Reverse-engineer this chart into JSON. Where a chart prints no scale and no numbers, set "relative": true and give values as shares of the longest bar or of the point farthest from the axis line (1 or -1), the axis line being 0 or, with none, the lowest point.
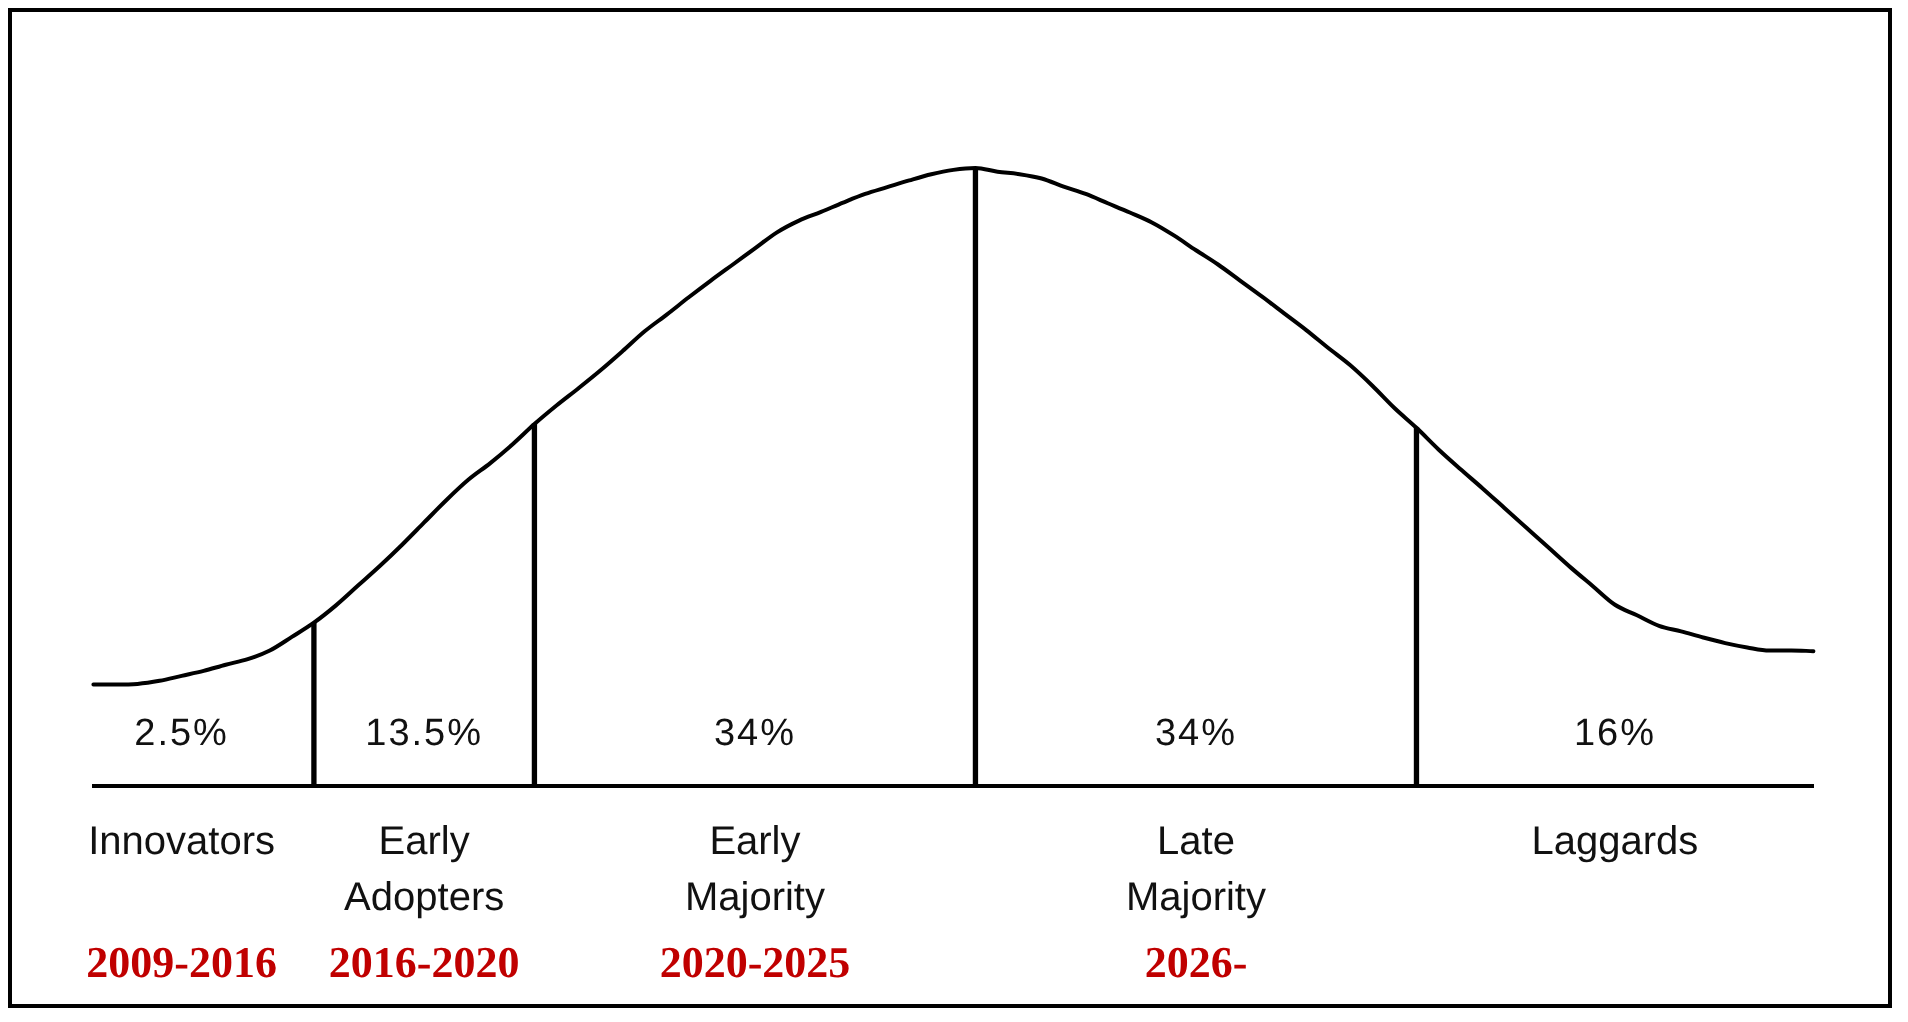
{
  "chart_data": {
    "type": "line",
    "relative": true,
    "categories": [
      null,
      null,
      null,
      null,
      "Innovators",
      null,
      null,
      null,
      null,
      null,
      null,
      null,
      null,
      null,
      null,
      "Early Adopters",
      null,
      null,
      null,
      null,
      null,
      null,
      null,
      null,
      null,
      null,
      null,
      null,
      null,
      null,
      "Early Majority",
      null,
      null,
      null,
      null,
      null,
      null,
      null,
      null,
      null,
      null,
      null,
      null,
      null,
      null,
      null,
      null,
      null,
      null,
      null,
      "Late Majority",
      null,
      null,
      null,
      null,
      null,
      null,
      null,
      null,
      null,
      null,
      null,
      null,
      null,
      null,
      null,
      null,
      null,
      null,
      "Laggards",
      null,
      null,
      null,
      null,
      null,
      null,
      null,
      null,
      null
    ],
    "series": [
      {
        "color": "#000000",
        "values": [
          0.165,
          0.165,
          0.166,
          0.171,
          0.179,
          0.187,
          0.197,
          0.206,
          0.22,
          0.242,
          0.265,
          0.293,
          0.325,
          0.357,
          0.391,
          0.427,
          0.463,
          0.496,
          0.523,
          0.553,
          0.586,
          0.616,
          0.644,
          0.673,
          0.704,
          0.736,
          0.763,
          0.791,
          0.818,
          0.844,
          0.87,
          0.896,
          0.915,
          0.929,
          0.944,
          0.958,
          0.969,
          0.98,
          0.99,
          0.997,
          1,
          0.994,
          0.99,
          0.983,
          0.97,
          0.958,
          0.943,
          0.928,
          0.912,
          0.891,
          0.867,
          0.844,
          0.818,
          0.792,
          0.765,
          0.738,
          0.709,
          0.681,
          0.648,
          0.612,
          0.58,
          0.545,
          0.513,
          0.482,
          0.45,
          0.418,
          0.386,
          0.354,
          0.324,
          0.294,
          0.277,
          0.26,
          0.251,
          0.241,
          0.232,
          0.225,
          0.22,
          0.22,
          0.219
        ]
      },
      {
        "type": "bar",
        "color": "#000000",
        "values": [
          null,
          null,
          null,
          null,
          null,
          null,
          null,
          null,
          null,
          null,
          0.265,
          null,
          null,
          null,
          null,
          null,
          null,
          null,
          null,
          null,
          0.586,
          null,
          null,
          null,
          null,
          null,
          null,
          null,
          null,
          null,
          null,
          null,
          null,
          null,
          null,
          null,
          null,
          null,
          null,
          null,
          1,
          null,
          null,
          null,
          null,
          null,
          null,
          null,
          null,
          null,
          null,
          null,
          null,
          null,
          null,
          null,
          null,
          null,
          null,
          null,
          0.58,
          null,
          null,
          null,
          null,
          null,
          null,
          null,
          null,
          null,
          null,
          null,
          null,
          null,
          null,
          null,
          null,
          null,
          null
        ]
      }
    ],
    "annotations": [
      "2.5%",
      "13.5%",
      "34%",
      "34%",
      "16%",
      "2009-2016",
      "2016-2020",
      "2020-2025",
      "2026-"
    ]
  }
}
